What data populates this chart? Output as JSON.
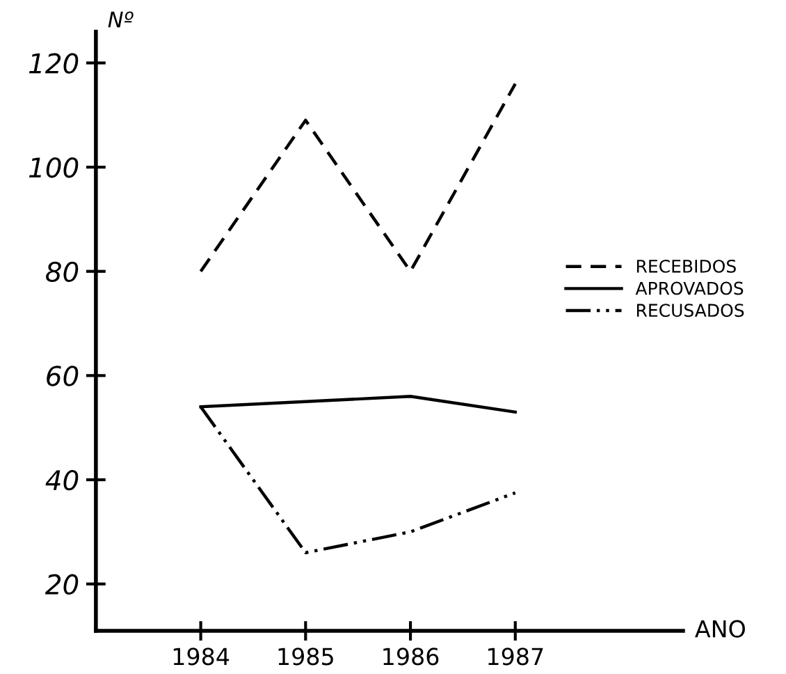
{
  "chart_data": {
    "type": "line",
    "xlabel": "ANO",
    "ylabel": "Nº",
    "x": [
      1984,
      1985,
      1986,
      1987
    ],
    "series": [
      {
        "name": "RECEBIDOS",
        "color": "#000000",
        "line_style": "dashed",
        "values": [
          80,
          109,
          80,
          116
        ]
      },
      {
        "name": "APROVADOS",
        "color": "#000000",
        "line_style": "solid",
        "values": [
          54,
          55,
          56,
          53
        ]
      },
      {
        "name": "RECUSADOS",
        "color": "#000000",
        "line_style": "dotted",
        "values": [
          54,
          26,
          30,
          37.5
        ]
      }
    ],
    "xlim": [
      1983,
      1988.6
    ],
    "ylim": [
      11,
      126
    ],
    "xticks": [
      1984,
      1985,
      1986,
      1987
    ],
    "yticks": [
      20,
      40,
      60,
      80,
      100,
      120
    ],
    "grid": false,
    "legend": "right",
    "marker": "none"
  }
}
